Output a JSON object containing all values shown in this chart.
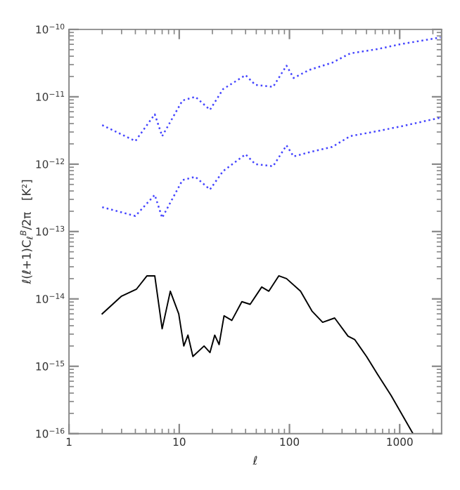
{
  "chart_data": {
    "type": "line",
    "xlabel": "ℓ",
    "ylabel": "ℓ(ℓ+1)C$_{ℓ}$$^{B}$/2π   [K²]",
    "log": "xy",
    "grid": false,
    "marker": "none",
    "xlim": [
      1,
      2400
    ],
    "xticks": [
      1,
      10,
      100,
      1000
    ],
    "ylim": [
      1e-16,
      1e-10
    ],
    "yticks": [
      {
        "value": 1e-16,
        "label": "10$^{−16}$"
      },
      {
        "value": 1e-15,
        "label": "10$^{−15}$"
      },
      {
        "value": 1e-14,
        "label": "10$^{−14}$"
      },
      {
        "value": 1e-13,
        "label": "10$^{−13}$"
      },
      {
        "value": 1e-12,
        "label": "10$^{−12}$"
      },
      {
        "value": 1e-11,
        "label": "10$^{−11}$"
      },
      {
        "value": 1e-10,
        "label": "10$^{−10}$"
      }
    ],
    "series": [
      {
        "color": "#4444ff",
        "line_style": "dotted",
        "x": [
          2,
          4,
          6,
          7,
          10.7,
          14,
          19,
          25,
          40,
          49,
          71,
          94,
          109,
          151,
          244,
          355,
          630,
          1000,
          2350
        ],
        "values": [
          3.8e-12,
          2.2e-12,
          5.5e-12,
          2.6e-12,
          8.8e-12,
          1e-11,
          6.4e-12,
          1.3e-11,
          2.1e-11,
          1.5e-11,
          1.4e-11,
          2.9e-11,
          1.9e-11,
          2.5e-11,
          3.2e-11,
          4.4e-11,
          5.1e-11,
          6e-11,
          7.6e-11
        ]
      },
      {
        "color": "#4444ff",
        "line_style": "dotted",
        "x": [
          2,
          4,
          6,
          7,
          10.7,
          14,
          19,
          25,
          40,
          49,
          71,
          94,
          109,
          151,
          244,
          355,
          630,
          1000,
          2350
        ],
        "values": [
          2.3e-13,
          1.7e-13,
          3.5e-13,
          1.6e-13,
          5.8e-13,
          6.5e-13,
          4.2e-13,
          7.9e-13,
          1.4e-12,
          1e-12,
          9.3e-13,
          1.9e-12,
          1.3e-12,
          1.5e-12,
          1.8e-12,
          2.6e-12,
          3.1e-12,
          3.6e-12,
          4.9e-12
        ]
      },
      {
        "color": "#000000",
        "line_style": "solid",
        "x": [
          2,
          3,
          4.1,
          5.1,
          6,
          7,
          8.3,
          9.9,
          11,
          12,
          13.3,
          16.8,
          19,
          21,
          23,
          25.5,
          30,
          37,
          44,
          56,
          65,
          80,
          94,
          126,
          160,
          200,
          257,
          340,
          390,
          500,
          630,
          835,
          1320
        ],
        "values": [
          6e-15,
          1.1e-14,
          1.4e-14,
          2.2e-14,
          2.2e-14,
          3.6e-15,
          1.3e-14,
          6e-15,
          2e-15,
          2.9e-15,
          1.4e-15,
          2e-15,
          1.6e-15,
          2.9e-15,
          2.1e-15,
          5.6e-15,
          4.8e-15,
          9.1e-15,
          8.3e-15,
          1.5e-14,
          1.3e-14,
          2.2e-14,
          2e-14,
          1.3e-14,
          6.6e-15,
          4.5e-15,
          5.2e-15,
          2.8e-15,
          2.5e-15,
          1.4e-15,
          7.6e-16,
          3.7e-16,
          1e-16
        ]
      }
    ]
  }
}
